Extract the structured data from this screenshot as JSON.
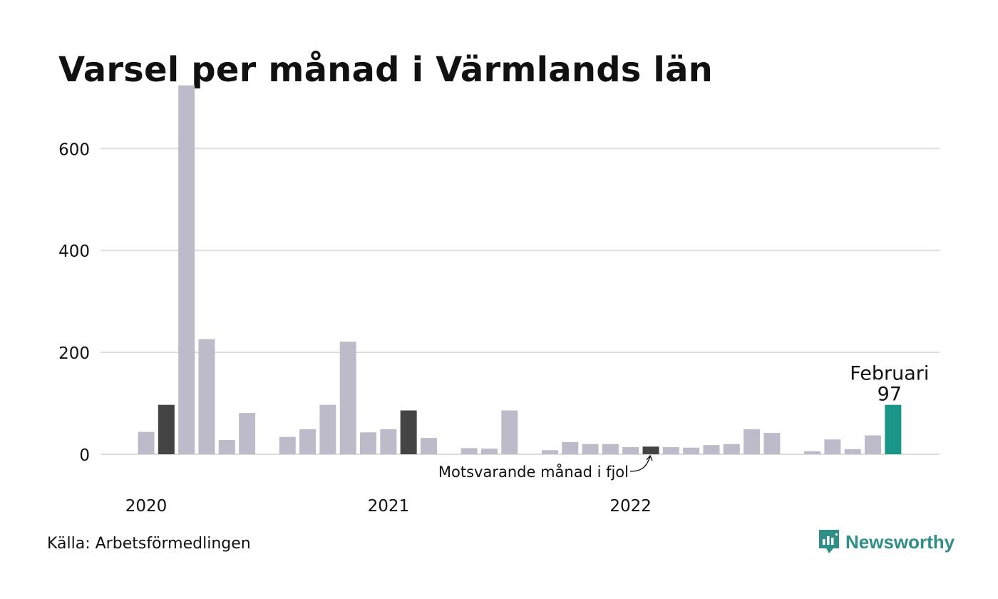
{
  "title": "Varsel per månad i Värmlands län",
  "source": "Källa: Arbetsförmedlingen",
  "brand": "Newsworthy",
  "colors": {
    "default": "#bdbbc9",
    "same_month_last_year": "#444444",
    "current": "#1a9688",
    "grid": "#dddddd",
    "brand": "#2f8f86"
  },
  "chart_data": {
    "type": "bar",
    "title": "Varsel per månad i Värmlands län",
    "xlabel": "",
    "ylabel": "",
    "ylim": [
      0,
      725
    ],
    "yticks": [
      0,
      200,
      400,
      600
    ],
    "grid": true,
    "xtick_labels": [
      {
        "label": "2020",
        "index": 0
      },
      {
        "label": "2021",
        "index": 12
      },
      {
        "label": "2022",
        "index": 24
      }
    ],
    "values": [
      44,
      97,
      724,
      226,
      28,
      81,
      null,
      34,
      49,
      97,
      221,
      43,
      49,
      86,
      32,
      null,
      12,
      11,
      86,
      null,
      8,
      24,
      20,
      20,
      14,
      15,
      14,
      13,
      18,
      20,
      49,
      42,
      null,
      6,
      29,
      10,
      37,
      97
    ],
    "highlight": {
      "same_month_last_year": [
        1,
        13,
        25
      ],
      "current": [
        37
      ]
    },
    "annotations": {
      "current_label": "Februari",
      "current_value": "97",
      "last_year_label": "Motsvarande månad i fjol"
    }
  }
}
